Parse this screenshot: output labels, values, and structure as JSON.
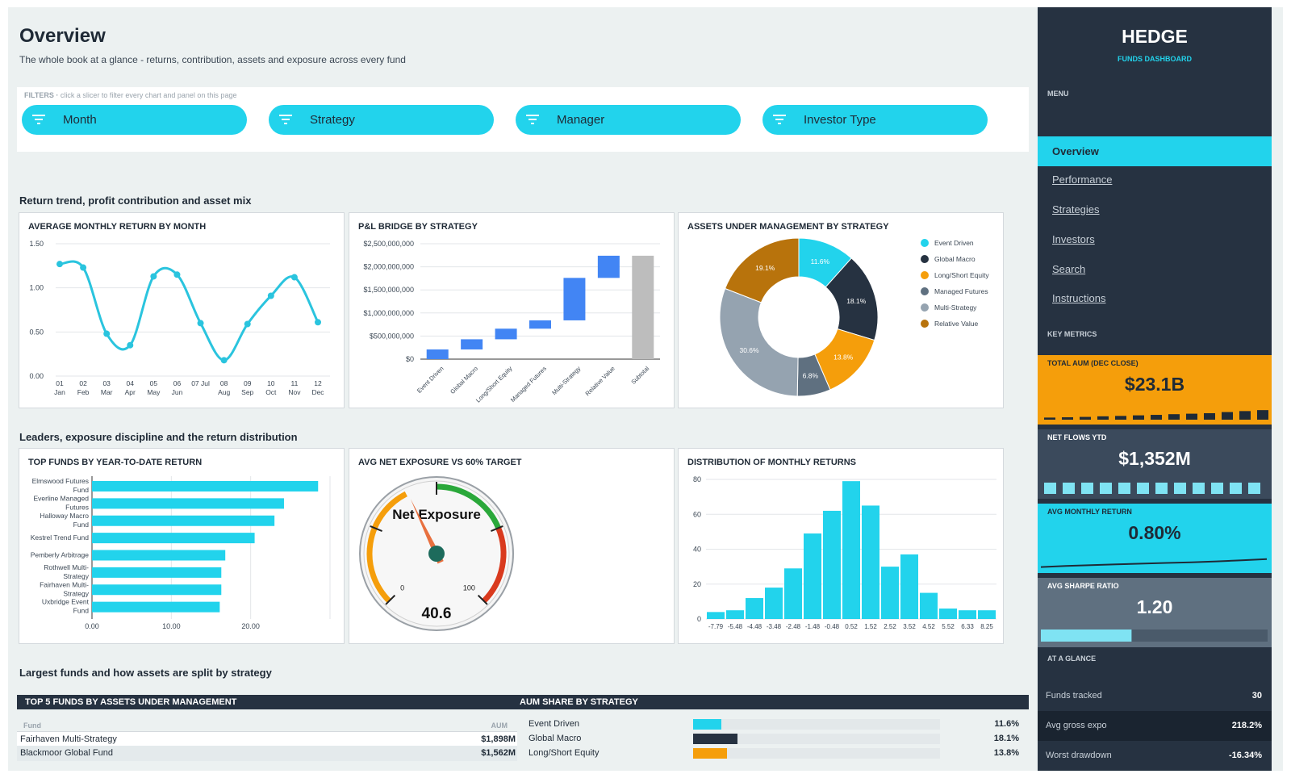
{
  "header": {
    "title": "Overview",
    "subtitle": "The whole book at a glance - returns, contribution, assets and exposure across every fund"
  },
  "filters": {
    "caption": "FILTERS",
    "hint": "click a slicer to filter every chart and panel on this page",
    "slicers": [
      "Month",
      "Strategy",
      "Manager",
      "Investor Type"
    ]
  },
  "sections": {
    "s1": "Return trend, profit contribution and asset mix",
    "s2": "Leaders, exposure discipline and the return distribution",
    "s3": "Largest funds and how assets are split by strategy"
  },
  "charts": {
    "c1_title": "AVERAGE MONTHLY RETURN BY MONTH",
    "c2_title": "P&L BRIDGE BY STRATEGY",
    "c3_title": "ASSETS UNDER MANAGEMENT BY STRATEGY",
    "c4_title": "TOP FUNDS BY YEAR-TO-DATE RETURN",
    "c5_title": "AVG NET EXPOSURE VS 60% TARGET",
    "c6_title": "DISTRIBUTION OF MONTHLY RETURNS"
  },
  "chart_data": [
    {
      "type": "line",
      "title": "AVERAGE MONTHLY RETURN BY MONTH",
      "x_ticks": [
        "01|Jan",
        "02|Feb",
        "03|Mar",
        "04|Apr",
        "05|May",
        "06|Jun",
        "07 Jul|",
        "08|Aug",
        "09|Sep",
        "10|Oct",
        "11|Nov",
        "12|Dec"
      ],
      "values": [
        1.27,
        1.23,
        0.48,
        0.35,
        1.13,
        1.15,
        0.6,
        0.18,
        0.59,
        0.91,
        1.12,
        0.61
      ],
      "yticks": [
        0.0,
        0.5,
        1.0,
        1.5
      ],
      "ytick_labels": [
        "0.00",
        "0.50",
        "1.00",
        "1.50"
      ],
      "ylim": [
        0,
        1.5
      ],
      "color": "#2ac4de"
    },
    {
      "type": "bar",
      "subtype": "waterfall",
      "title": "P&L BRIDGE BY STRATEGY",
      "categories": [
        "Event Driven",
        "Global Macro",
        "Long/Short Equity",
        "Managed Futures",
        "Multi-Strategy",
        "Relative Value",
        "Subtotal"
      ],
      "values": [
        210000000,
        220000000,
        230000000,
        180000000,
        920000000,
        480000000,
        2240000000
      ],
      "ylim": [
        0,
        2500000000
      ],
      "ytick_labels": [
        "$0",
        "$500,000,000",
        "$1,000,000,000",
        "$1,500,000,000",
        "$2,000,000,000",
        "$2,500,000,000"
      ],
      "colors": {
        "increase": "#4285f4",
        "total": "#bdbdbd"
      }
    },
    {
      "type": "pie",
      "subtype": "donut",
      "title": "ASSETS UNDER MANAGEMENT BY STRATEGY",
      "categories": [
        "Event Driven",
        "Global Macro",
        "Long/Short Equity",
        "Managed Futures",
        "Multi-Strategy",
        "Relative Value"
      ],
      "values": [
        11.6,
        18.1,
        13.8,
        6.8,
        30.6,
        19.1
      ],
      "labels": [
        "11.6%",
        "18.1%",
        "13.8%",
        "6.8%",
        "30.6%",
        "19.1%"
      ],
      "colors": [
        "#22d3ec",
        "#263241",
        "#f59e0b",
        "#5f7080",
        "#95a3b0",
        "#b8730c"
      ],
      "legend": "right"
    },
    {
      "type": "bar",
      "orientation": "horizontal",
      "title": "TOP FUNDS BY YEAR-TO-DATE RETURN",
      "categories": [
        "Elmswood Futures|Fund",
        "Everline Managed|Futures",
        "Halloway Macro|Fund",
        "Kestrel Trend Fund",
        "Pemberly Arbitrage",
        "Rothwell Multi-|Strategy",
        "Fairhaven Multi-|Strategy",
        "Uxbridge Event|Fund"
      ],
      "values": [
        28.5,
        24.2,
        23.0,
        20.5,
        16.8,
        16.3,
        16.3,
        16.1
      ],
      "xticks": [
        0,
        10,
        20
      ],
      "xtick_labels": [
        "0.00",
        "10.00",
        "20.00"
      ],
      "xlim": [
        0,
        30
      ],
      "color": "#22d3ec"
    },
    {
      "type": "gauge",
      "title": "AVG NET EXPOSURE VS 60% TARGET",
      "label": "Net Exposure",
      "value": 40.6,
      "value_label": "40.6",
      "min_label": "0",
      "max_label": "100",
      "range": [
        0,
        100
      ]
    },
    {
      "type": "bar",
      "subtype": "histogram",
      "title": "DISTRIBUTION OF MONTHLY RETURNS",
      "categories": [
        "-7.79",
        "-5.48",
        "-4.48",
        "-3.48",
        "-2.48",
        "-1.48",
        "-0.48",
        "0.52",
        "1.52",
        "2.52",
        "3.52",
        "4.52",
        "5.52",
        "6.33",
        "8.25"
      ],
      "values": [
        4,
        5,
        12,
        18,
        29,
        49,
        62,
        79,
        65,
        30,
        37,
        15,
        6,
        5,
        5
      ],
      "yticks": [
        0,
        20,
        40,
        60,
        80
      ],
      "ylim": [
        0,
        80
      ],
      "color": "#22d3ec"
    }
  ],
  "bottom": {
    "left_title": "TOP 5 FUNDS BY ASSETS UNDER MANAGEMENT",
    "right_title": "AUM SHARE BY STRATEGY",
    "col_fund": "Fund",
    "col_aum": "AUM",
    "rows": [
      {
        "fund": "Fairhaven Multi-Strategy",
        "aum": "$1,898M"
      },
      {
        "fund": "Blackmoor Global Fund",
        "aum": "$1,562M"
      }
    ],
    "shares": [
      {
        "name": "Event Driven",
        "value": 11.6,
        "label": "11.6%",
        "color": "#22d3ec"
      },
      {
        "name": "Global Macro",
        "value": 18.1,
        "label": "18.1%",
        "color": "#263241"
      },
      {
        "name": "Long/Short Equity",
        "value": 13.8,
        "label": "13.8%",
        "color": "#f59e0b"
      }
    ]
  },
  "sidebar": {
    "logo": "HEDGE",
    "logo_sub": "FUNDS DASHBOARD",
    "menu_caption": "MENU",
    "nav": [
      "Overview",
      "Performance",
      "Strategies",
      "Investors",
      "Search",
      "Instructions"
    ],
    "active": "Overview",
    "kpi_caption": "KEY METRICS",
    "kpis": [
      {
        "title": "TOTAL AUM (DEC CLOSE)",
        "value": "$23.1B",
        "bg": "#f59e0b",
        "fg": "#1f2a36",
        "spark": [
          0.05,
          0.08,
          0.12,
          0.18,
          0.22,
          0.28,
          0.33,
          0.4,
          0.45,
          0.5,
          0.62,
          0.72,
          0.82
        ]
      },
      {
        "title": "NET FLOWS YTD",
        "value": "$1,352M",
        "bg": "#3b4a5c",
        "fg": "#ffffff",
        "spark": [
          1,
          1,
          1,
          1,
          1,
          1,
          1,
          1,
          1,
          1,
          1,
          1
        ]
      },
      {
        "title": "AVG MONTHLY RETURN",
        "value": "0.80%",
        "bg": "#22d3ec",
        "fg": "#1f2a36",
        "spark": [
          0.1,
          0.2,
          0.27,
          0.34,
          0.4,
          0.46,
          0.52,
          0.6,
          0.7,
          0.8
        ]
      },
      {
        "title": "AVG SHARPE RATIO",
        "value": "1.20",
        "bg": "#5f7080",
        "fg": "#ffffff",
        "progress": 0.4
      }
    ],
    "glance_caption": "AT A GLANCE",
    "glance": [
      {
        "label": "Funds tracked",
        "value": "30"
      },
      {
        "label": "Avg gross expo",
        "value": "218.2%"
      },
      {
        "label": "Worst drawdown",
        "value": "-16.34%"
      }
    ]
  }
}
